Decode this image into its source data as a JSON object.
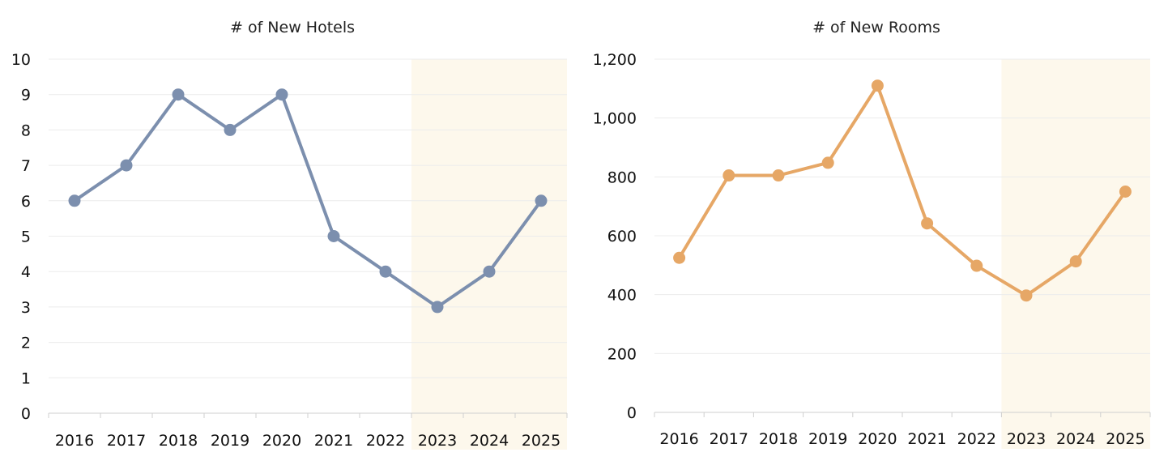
{
  "chart_data": [
    {
      "type": "line",
      "title": "# of New Hotels",
      "xlabel": "",
      "ylabel": "",
      "categories": [
        "2016",
        "2017",
        "2018",
        "2019",
        "2020",
        "2021",
        "2022",
        "2023",
        "2024",
        "2025"
      ],
      "series": [
        {
          "values": [
            6,
            7,
            9,
            8,
            9,
            5,
            4,
            3,
            4,
            6
          ]
        }
      ],
      "ylim": [
        0,
        10
      ],
      "yticks": [
        0,
        1,
        2,
        3,
        4,
        5,
        6,
        7,
        8,
        9,
        10
      ],
      "ytick_labels": [
        "0",
        "1",
        "2",
        "3",
        "4",
        "5",
        "6",
        "7",
        "8",
        "9",
        "10"
      ],
      "grid": true,
      "highlight_range": [
        "2023",
        "2025"
      ],
      "colors": {
        "line": "#7c8fae",
        "highlight": "#fdf8ec"
      }
    },
    {
      "type": "line",
      "title": "# of New Rooms",
      "xlabel": "",
      "ylabel": "",
      "categories": [
        "2016",
        "2017",
        "2018",
        "2019",
        "2020",
        "2021",
        "2022",
        "2023",
        "2024",
        "2025"
      ],
      "series": [
        {
          "values": [
            525,
            805,
            805,
            848,
            1110,
            642,
            498,
            397,
            513,
            750
          ]
        }
      ],
      "ylim": [
        0,
        1200
      ],
      "yticks": [
        0,
        200,
        400,
        600,
        800,
        1000,
        1200
      ],
      "ytick_labels": [
        "0",
        "200",
        "400",
        "600",
        "800",
        "1,000",
        "1,200"
      ],
      "grid": true,
      "highlight_range": [
        "2023",
        "2025"
      ],
      "colors": {
        "line": "#e6a766",
        "highlight": "#fdf8ec"
      }
    }
  ]
}
